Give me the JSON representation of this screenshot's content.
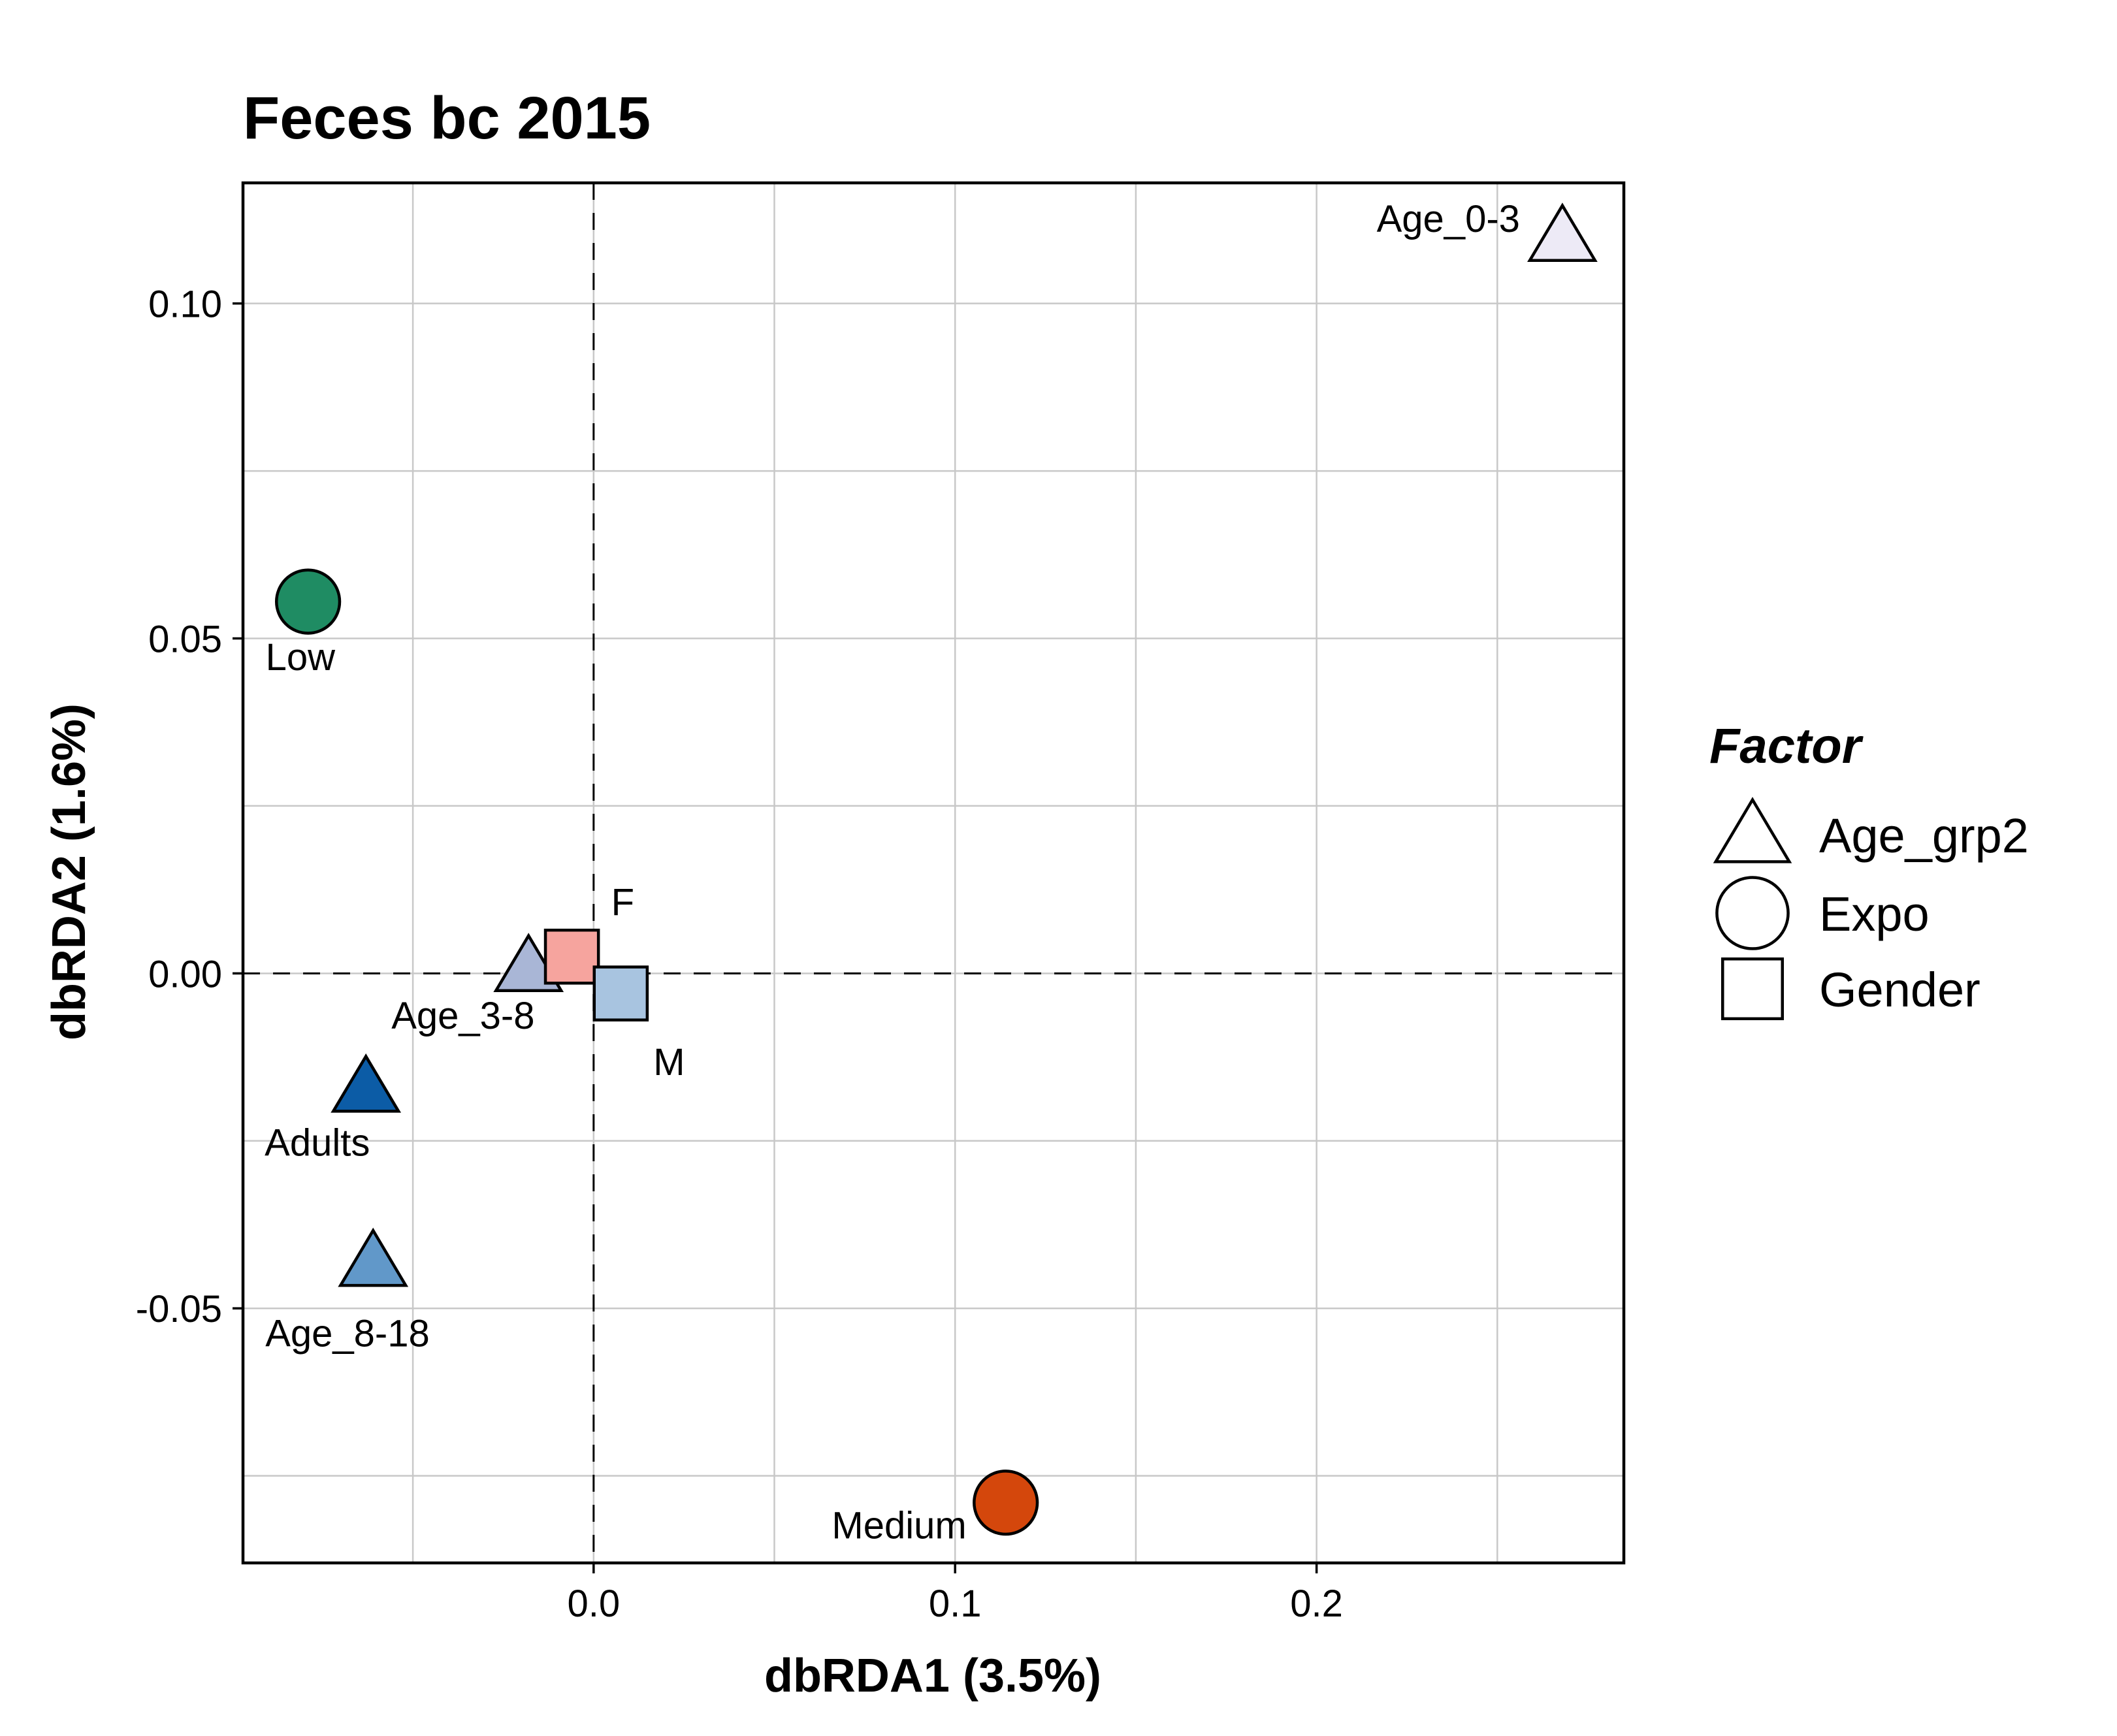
{
  "chart_data": {
    "type": "scatter",
    "title": "Feces bc 2015",
    "xlabel": "dbRDA1 (3.5%)",
    "ylabel": "dbRDA2 (1.6%)",
    "xlim": [
      -0.097,
      0.285
    ],
    "ylim": [
      -0.088,
      0.118
    ],
    "x_ticks": [
      {
        "value": 0.0,
        "label": "0.0"
      },
      {
        "value": 0.1,
        "label": "0.1"
      },
      {
        "value": 0.2,
        "label": "0.2"
      }
    ],
    "y_ticks": [
      {
        "value": 0.1,
        "label": "0.10"
      },
      {
        "value": 0.05,
        "label": "0.05"
      },
      {
        "value": 0.0,
        "label": "0.00"
      },
      {
        "value": -0.05,
        "label": "-0.05"
      }
    ],
    "x_minor_grid": [
      -0.05,
      0.05,
      0.15,
      0.25
    ],
    "y_minor_grid": [
      0.075,
      0.025,
      -0.025,
      -0.075
    ],
    "reference_lines": {
      "x": 0,
      "y": 0
    },
    "grid": true,
    "points": [
      {
        "label": "Age_0-3",
        "factor": "Age_grp2",
        "shape": "triangle",
        "color": "#EDEAF6",
        "x": 0.268,
        "y": 0.11,
        "label_pos": "left"
      },
      {
        "label": "Age_3-8",
        "factor": "Age_grp2",
        "shape": "triangle",
        "color": "#A9B6D6",
        "x": -0.018,
        "y": 0.001,
        "label_pos": "below-right"
      },
      {
        "label": "Adults",
        "factor": "Age_grp2",
        "shape": "triangle",
        "color": "#0C5CA6",
        "x": -0.063,
        "y": -0.017,
        "label_pos": "below-left"
      },
      {
        "label": "Age_8-18",
        "factor": "Age_grp2",
        "shape": "triangle",
        "color": "#6198C9",
        "x": -0.061,
        "y": -0.043,
        "label_pos": "below-left"
      },
      {
        "label": "Low",
        "factor": "Expo",
        "shape": "circle",
        "color": "#1F8C63",
        "x": -0.079,
        "y": 0.0555,
        "label_pos": "below"
      },
      {
        "label": "Medium",
        "factor": "Expo",
        "shape": "circle",
        "color": "#D4470C",
        "x": 0.114,
        "y": -0.079,
        "label_pos": "below-left"
      },
      {
        "label": "F",
        "factor": "Gender",
        "shape": "square",
        "color": "#F6A49E",
        "x": -0.006,
        "y": 0.0025,
        "label_pos": "above-right"
      },
      {
        "label": "M",
        "factor": "Gender",
        "shape": "square",
        "color": "#A8C4E0",
        "x": 0.0075,
        "y": -0.003,
        "label_pos": "below-right"
      }
    ],
    "legend": {
      "title": "Factor",
      "placement": "right",
      "entries": [
        {
          "label": "Age_grp2",
          "shape": "triangle"
        },
        {
          "label": "Expo",
          "shape": "circle"
        },
        {
          "label": "Gender",
          "shape": "square"
        }
      ]
    }
  }
}
